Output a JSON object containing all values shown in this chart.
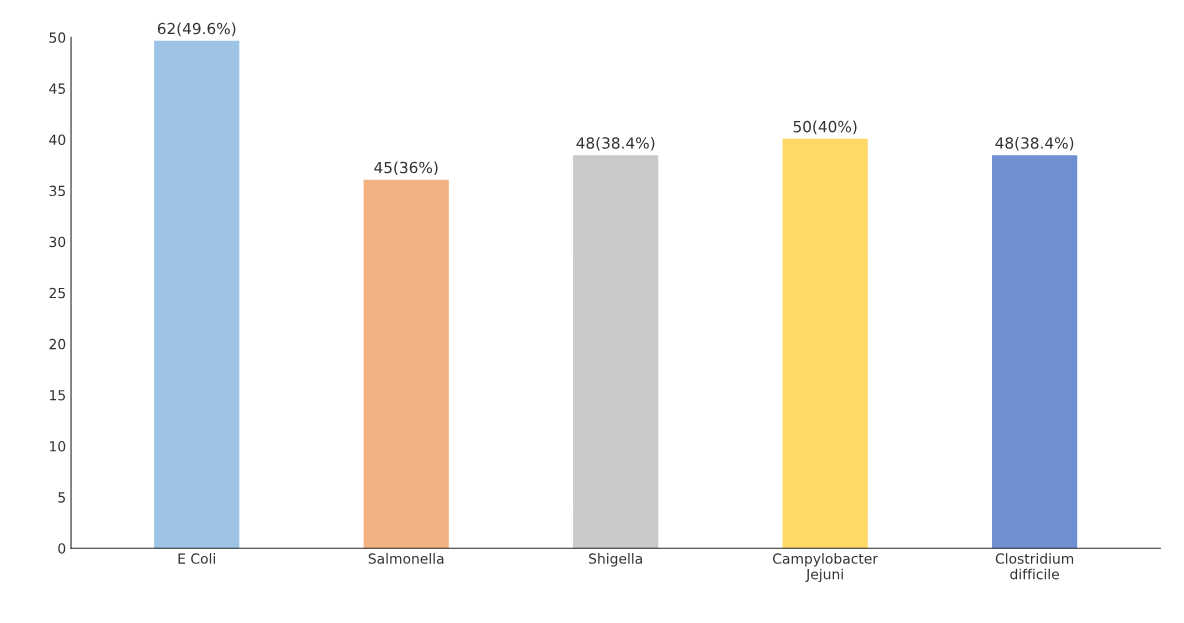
{
  "chart_data": {
    "type": "bar",
    "categories": [
      "E Coli",
      "Salmonella",
      "Shigella",
      "Campylobacter\nJejuni",
      "Clostridium\ndifficile"
    ],
    "values": [
      49.6,
      36,
      38.4,
      40,
      38.4
    ],
    "colors": [
      "#9dc3e6",
      "#f4b183",
      "#c9c9c9",
      "#ffd966",
      "#6f8fd0"
    ],
    "value_labels": [
      "62(49.6%)",
      "45(36%)",
      "48(38.4%)",
      "50(40%)",
      "48(38.4%)"
    ],
    "ylim": [
      0,
      50
    ],
    "yticks": [
      0,
      5,
      10,
      15,
      20,
      25,
      30,
      35,
      40,
      45,
      50
    ],
    "grid": false,
    "legend": false
  }
}
